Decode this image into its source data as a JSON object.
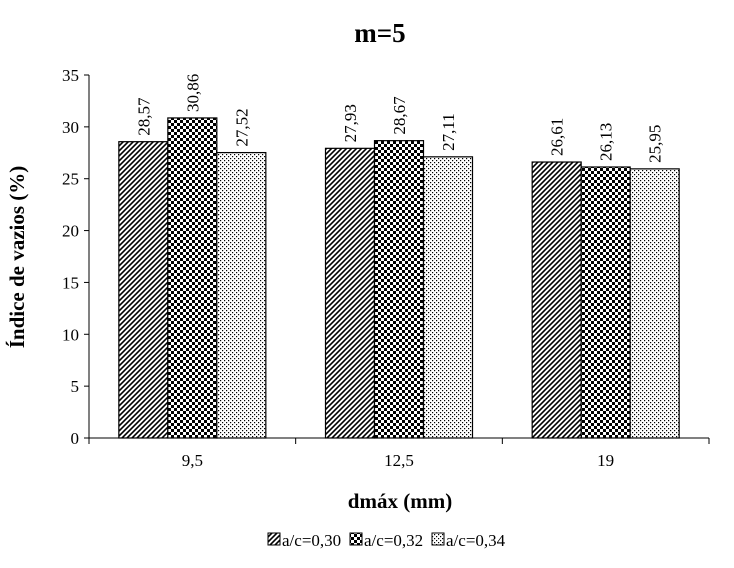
{
  "chart_data": {
    "type": "bar",
    "title": "m=5",
    "xlabel": "dmáx (mm)",
    "ylabel": "Índice de vazios (%)",
    "categories": [
      "9,5",
      "12,5",
      "19"
    ],
    "ylim": [
      0,
      35
    ],
    "yticks": [
      "0",
      "5",
      "10",
      "15",
      "20",
      "25",
      "30",
      "35"
    ],
    "grid": false,
    "legend_position": "bottom",
    "series": [
      {
        "name": "a/c=0,30",
        "values": [
          28.57,
          27.93,
          26.61
        ],
        "labels": [
          "28,57",
          "27,93",
          "26,61"
        ],
        "pattern": "diagonal"
      },
      {
        "name": "a/c=0,32",
        "values": [
          30.86,
          28.67,
          26.13
        ],
        "labels": [
          "30,86",
          "28,67",
          "26,13"
        ],
        "pattern": "checker"
      },
      {
        "name": "a/c=0,34",
        "values": [
          27.52,
          27.11,
          25.95
        ],
        "labels": [
          "27,52",
          "27,11",
          "25,95"
        ],
        "pattern": "dots"
      }
    ]
  }
}
